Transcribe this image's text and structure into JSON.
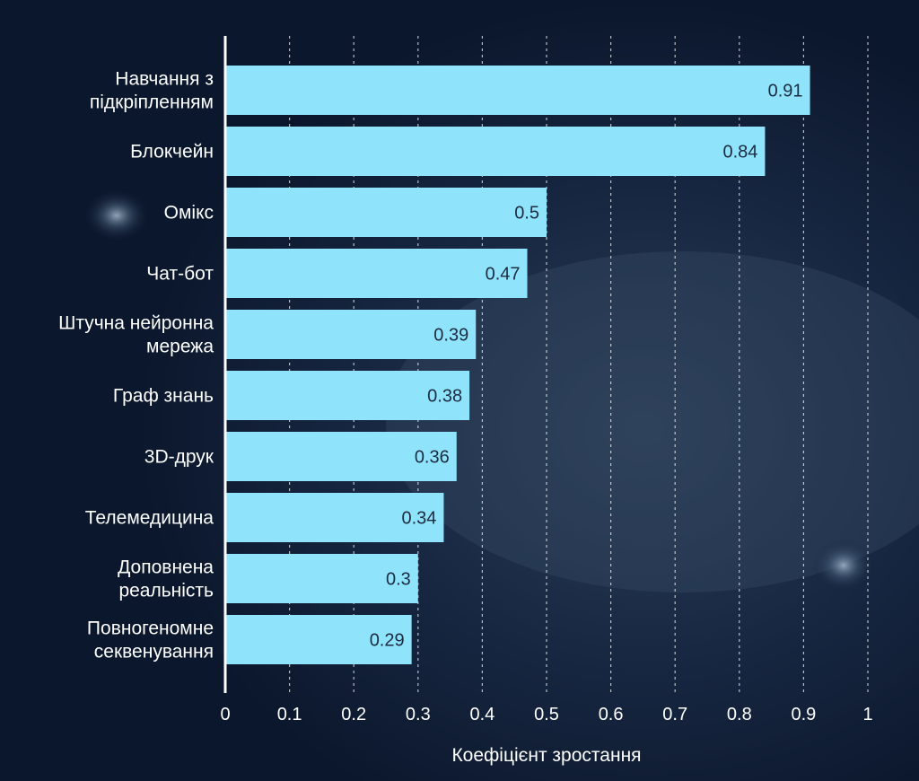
{
  "colors": {
    "bar": "#8fe4fb",
    "background": "#0d1b33",
    "text": "#ffffff",
    "value_text": "#1d2b40",
    "grid": "#ffffff"
  },
  "chart_data": {
    "type": "bar",
    "orientation": "horizontal",
    "categories": [
      [
        "Навчання з",
        "підкріпленням"
      ],
      [
        "Блокчейн"
      ],
      [
        "Омікс"
      ],
      [
        "Чат-бот"
      ],
      [
        "Штучна нейронна",
        "мережа"
      ],
      [
        "Граф знань"
      ],
      [
        "3D-друк"
      ],
      [
        "Телемедицина"
      ],
      [
        "Доповнена",
        "реальність"
      ],
      [
        "Повногеномне",
        "секвенування"
      ]
    ],
    "values": [
      0.91,
      0.84,
      0.5,
      0.47,
      0.39,
      0.38,
      0.36,
      0.34,
      0.3,
      0.29
    ],
    "data_labels": [
      "0.91",
      "0.84",
      "0.5",
      "0.47",
      "0.39",
      "0.38",
      "0.36",
      "0.34",
      "0.3",
      "0.29"
    ],
    "xlabel": "Коефіцієнт зростання",
    "ylabel": "",
    "title": "",
    "xlim": [
      0,
      1
    ],
    "xticks": [
      0,
      0.1,
      0.2,
      0.3,
      0.4,
      0.5,
      0.6,
      0.7,
      0.8,
      0.9,
      1
    ],
    "xtick_labels": [
      "0",
      "0.1",
      "0.2",
      "0.3",
      "0.4",
      "0.5",
      "0.6",
      "0.7",
      "0.8",
      "0.9",
      "1"
    ],
    "grid": "vertical dashed"
  }
}
